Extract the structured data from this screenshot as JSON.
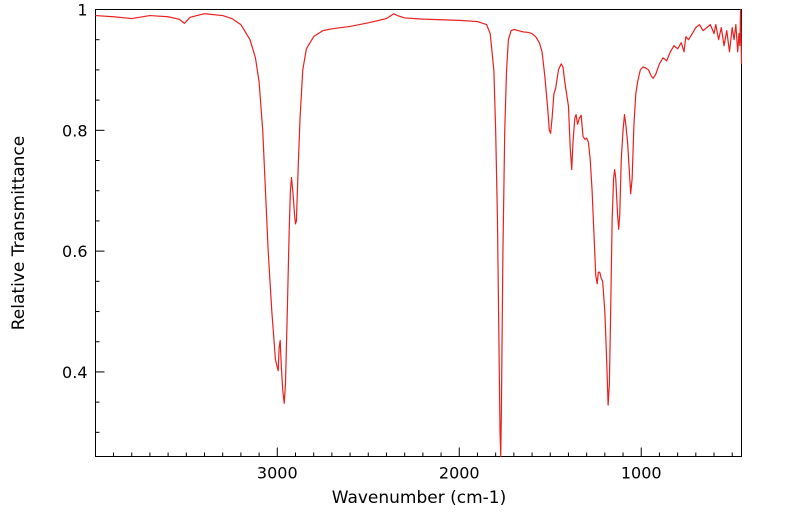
{
  "chart_data": {
    "type": "line",
    "title": "",
    "xlabel": "Wavenumber (cm-1)",
    "ylabel": "Relative Transmittance",
    "xlim": [
      3999,
      449
    ],
    "ylim": [
      0.26,
      1.0
    ],
    "x_reversed": true,
    "grid": false,
    "x_ticks": [
      {
        "value": 3000,
        "label": "3000"
      },
      {
        "value": 2000,
        "label": "2000"
      },
      {
        "value": 1000,
        "label": "1000"
      }
    ],
    "y_ticks": [
      {
        "value": 0.4,
        "label": "0.4"
      },
      {
        "value": 0.6,
        "label": "0.6"
      },
      {
        "value": 0.8,
        "label": "0.8"
      },
      {
        "value": 1.0,
        "label": "1"
      }
    ],
    "series": [
      {
        "color": "#e8201e",
        "points": [
          [
            3999,
            0.99
          ],
          [
            3900,
            0.988
          ],
          [
            3800,
            0.985
          ],
          [
            3700,
            0.99
          ],
          [
            3600,
            0.988
          ],
          [
            3540,
            0.984
          ],
          [
            3510,
            0.977
          ],
          [
            3480,
            0.987
          ],
          [
            3400,
            0.993
          ],
          [
            3300,
            0.99
          ],
          [
            3250,
            0.985
          ],
          [
            3200,
            0.975
          ],
          [
            3150,
            0.95
          ],
          [
            3120,
            0.92
          ],
          [
            3100,
            0.88
          ],
          [
            3080,
            0.8
          ],
          [
            3065,
            0.7
          ],
          [
            3050,
            0.6
          ],
          [
            3030,
            0.5
          ],
          [
            3010,
            0.42
          ],
          [
            2995,
            0.402
          ],
          [
            2990,
            0.44
          ],
          [
            2984,
            0.452
          ],
          [
            2978,
            0.41
          ],
          [
            2970,
            0.37
          ],
          [
            2962,
            0.348
          ],
          [
            2955,
            0.38
          ],
          [
            2945,
            0.5
          ],
          [
            2935,
            0.63
          ],
          [
            2928,
            0.7
          ],
          [
            2922,
            0.722
          ],
          [
            2915,
            0.7
          ],
          [
            2905,
            0.66
          ],
          [
            2900,
            0.645
          ],
          [
            2895,
            0.65
          ],
          [
            2885,
            0.74
          ],
          [
            2875,
            0.82
          ],
          [
            2860,
            0.9
          ],
          [
            2840,
            0.935
          ],
          [
            2800,
            0.955
          ],
          [
            2750,
            0.965
          ],
          [
            2700,
            0.968
          ],
          [
            2600,
            0.972
          ],
          [
            2500,
            0.978
          ],
          [
            2400,
            0.985
          ],
          [
            2360,
            0.993
          ],
          [
            2340,
            0.99
          ],
          [
            2300,
            0.986
          ],
          [
            2200,
            0.984
          ],
          [
            2100,
            0.983
          ],
          [
            2000,
            0.982
          ],
          [
            1900,
            0.98
          ],
          [
            1850,
            0.975
          ],
          [
            1830,
            0.96
          ],
          [
            1810,
            0.9
          ],
          [
            1800,
            0.8
          ],
          [
            1790,
            0.65
          ],
          [
            1782,
            0.45
          ],
          [
            1776,
            0.3
          ],
          [
            1772,
            0.26
          ],
          [
            1768,
            0.35
          ],
          [
            1760,
            0.6
          ],
          [
            1750,
            0.8
          ],
          [
            1740,
            0.9
          ],
          [
            1730,
            0.95
          ],
          [
            1715,
            0.965
          ],
          [
            1700,
            0.967
          ],
          [
            1650,
            0.963
          ],
          [
            1620,
            0.962
          ],
          [
            1600,
            0.96
          ],
          [
            1580,
            0.955
          ],
          [
            1560,
            0.945
          ],
          [
            1545,
            0.93
          ],
          [
            1530,
            0.89
          ],
          [
            1515,
            0.84
          ],
          [
            1505,
            0.8
          ],
          [
            1498,
            0.795
          ],
          [
            1490,
            0.82
          ],
          [
            1480,
            0.86
          ],
          [
            1470,
            0.87
          ],
          [
            1455,
            0.9
          ],
          [
            1440,
            0.91
          ],
          [
            1430,
            0.905
          ],
          [
            1420,
            0.88
          ],
          [
            1410,
            0.86
          ],
          [
            1400,
            0.84
          ],
          [
            1390,
            0.77
          ],
          [
            1382,
            0.735
          ],
          [
            1375,
            0.78
          ],
          [
            1365,
            0.82
          ],
          [
            1358,
            0.826
          ],
          [
            1350,
            0.81
          ],
          [
            1340,
            0.82
          ],
          [
            1330,
            0.825
          ],
          [
            1320,
            0.79
          ],
          [
            1310,
            0.785
          ],
          [
            1300,
            0.787
          ],
          [
            1290,
            0.78
          ],
          [
            1280,
            0.75
          ],
          [
            1270,
            0.7
          ],
          [
            1260,
            0.63
          ],
          [
            1250,
            0.56
          ],
          [
            1242,
            0.546
          ],
          [
            1236,
            0.565
          ],
          [
            1228,
            0.565
          ],
          [
            1220,
            0.555
          ],
          [
            1212,
            0.55
          ],
          [
            1200,
            0.5
          ],
          [
            1190,
            0.42
          ],
          [
            1182,
            0.345
          ],
          [
            1175,
            0.38
          ],
          [
            1168,
            0.5
          ],
          [
            1160,
            0.65
          ],
          [
            1152,
            0.72
          ],
          [
            1146,
            0.735
          ],
          [
            1140,
            0.72
          ],
          [
            1130,
            0.66
          ],
          [
            1124,
            0.636
          ],
          [
            1118,
            0.66
          ],
          [
            1110,
            0.75
          ],
          [
            1100,
            0.8
          ],
          [
            1092,
            0.826
          ],
          [
            1085,
            0.81
          ],
          [
            1075,
            0.78
          ],
          [
            1065,
            0.73
          ],
          [
            1058,
            0.695
          ],
          [
            1050,
            0.72
          ],
          [
            1040,
            0.81
          ],
          [
            1030,
            0.86
          ],
          [
            1020,
            0.88
          ],
          [
            1005,
            0.9
          ],
          [
            990,
            0.905
          ],
          [
            975,
            0.903
          ],
          [
            960,
            0.9
          ],
          [
            945,
            0.89
          ],
          [
            935,
            0.886
          ],
          [
            920,
            0.893
          ],
          [
            900,
            0.91
          ],
          [
            880,
            0.92
          ],
          [
            860,
            0.915
          ],
          [
            840,
            0.93
          ],
          [
            820,
            0.94
          ],
          [
            800,
            0.935
          ],
          [
            780,
            0.945
          ],
          [
            765,
            0.93
          ],
          [
            755,
            0.955
          ],
          [
            740,
            0.95
          ],
          [
            720,
            0.96
          ],
          [
            700,
            0.97
          ],
          [
            680,
            0.975
          ],
          [
            660,
            0.965
          ],
          [
            640,
            0.97
          ],
          [
            620,
            0.975
          ],
          [
            600,
            0.96
          ],
          [
            590,
            0.975
          ],
          [
            575,
            0.95
          ],
          [
            560,
            0.97
          ],
          [
            545,
            0.94
          ],
          [
            530,
            0.965
          ],
          [
            515,
            0.93
          ],
          [
            500,
            0.97
          ],
          [
            490,
            0.95
          ],
          [
            480,
            0.975
          ],
          [
            470,
            0.93
          ],
          [
            463,
            0.96
          ],
          [
            458,
            0.94
          ],
          [
            454,
            1.0
          ],
          [
            451,
            0.95
          ],
          [
            449,
            0.91
          ]
        ]
      }
    ]
  }
}
